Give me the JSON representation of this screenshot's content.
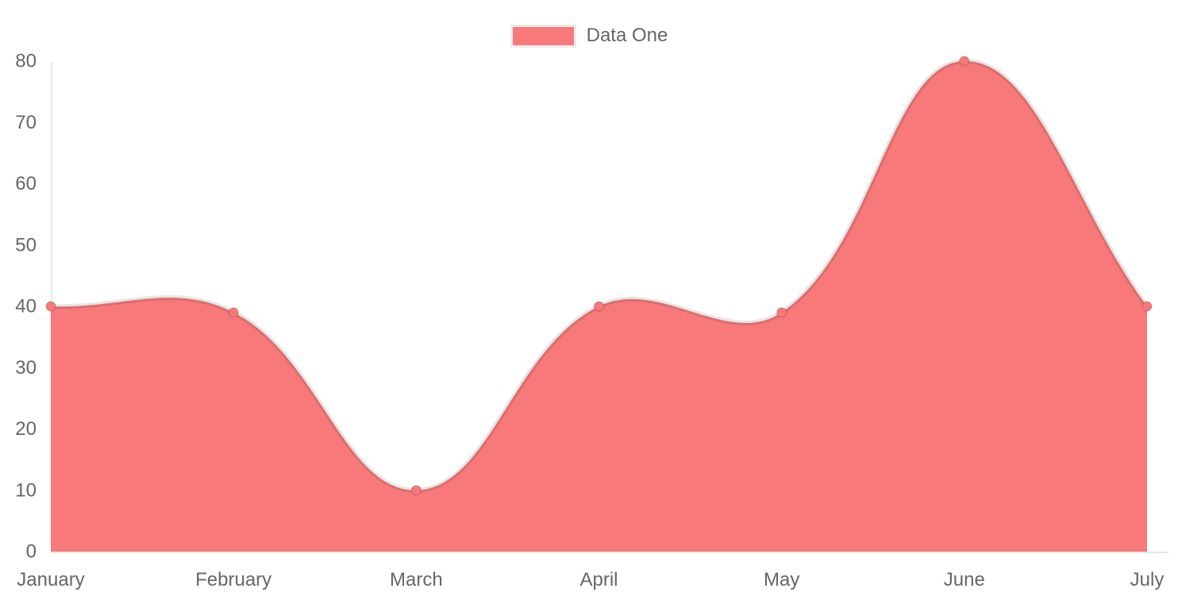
{
  "page": {
    "background": "#ffffff"
  },
  "legend": {
    "position": "top",
    "swatch_border_color": "#ebebeb"
  },
  "chart_data": {
    "type": "area",
    "title": "",
    "xlabel": "",
    "ylabel": "",
    "categories": [
      "January",
      "February",
      "March",
      "April",
      "May",
      "June",
      "July"
    ],
    "series": [
      {
        "name": "Data One",
        "values": [
          40,
          39,
          10,
          40,
          39,
          80,
          40
        ],
        "fill_color": "#f87979",
        "line_color": "rgba(0,0,0,0.10)",
        "point_fill_color": "#f87979",
        "point_border_color": "rgba(0,0,0,0.10)"
      }
    ],
    "ylim": [
      0,
      80
    ],
    "yticks": [
      0,
      10,
      20,
      30,
      40,
      50,
      60,
      70,
      80
    ],
    "grid": false,
    "smoothing": "bezier",
    "legend_position": "top",
    "axis_line_color": "#e7e7e7",
    "tick_label_color": "#666666"
  }
}
